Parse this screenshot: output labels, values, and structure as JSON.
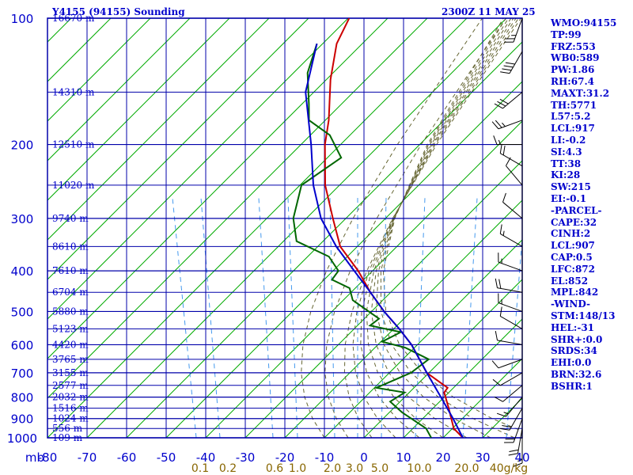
{
  "header": {
    "left": "Y4155 (94155) Sounding",
    "right": "2300Z 11 MAY 25"
  },
  "indices": [
    "WMO:94155",
    "TP:99",
    "FRZ:553",
    "WB0:589",
    "PW:1.86",
    "RH:67.4",
    "MAXT:31.2",
    "TH:5771",
    "L57:5.2",
    "LCL:917",
    "LI:-0.2",
    "SI:4.3",
    "TT:38",
    "KI:28",
    "SW:215",
    "EI:-0.1",
    "-PARCEL-",
    "CAPE:32",
    "CINH:2",
    "LCL:907",
    "CAP:0.5",
    "LFC:872",
    "EL:852",
    "MPL:842",
    "-WIND-",
    "STM:148/13",
    "HEL:-31",
    "SHR+:0.0",
    "SRDS:34",
    "EHI:0.0",
    "BRN:32.6",
    "BSHR:1"
  ],
  "chart_data": {
    "type": "line",
    "chart_kind": "skew-T log-P sounding",
    "x_axis": {
      "unit_label": "mb",
      "tick_labels": [
        "-80",
        "-70",
        "-60",
        "-50",
        "-40",
        "-30",
        "-20",
        "-10",
        "0",
        "10",
        "20",
        "30",
        "40"
      ],
      "range": [
        -80,
        40
      ]
    },
    "y_axis": {
      "scale": "log",
      "range": [
        1000,
        100
      ],
      "tick_labels": [
        "100",
        "200",
        "300",
        "400",
        "500",
        "600",
        "700",
        "800",
        "900",
        "1000"
      ]
    },
    "height_labels": [
      {
        "p": 100,
        "label": "16670 m"
      },
      {
        "p": 150,
        "label": "14310 m"
      },
      {
        "p": 200,
        "label": "12510 m"
      },
      {
        "p": 250,
        "label": "11020 m"
      },
      {
        "p": 300,
        "label": "9740 m"
      },
      {
        "p": 350,
        "label": "8610 m"
      },
      {
        "p": 400,
        "label": "7610 m"
      },
      {
        "p": 450,
        "label": "6704 m"
      },
      {
        "p": 500,
        "label": "5880 m"
      },
      {
        "p": 550,
        "label": "5123 m"
      },
      {
        "p": 600,
        "label": "4420 m"
      },
      {
        "p": 650,
        "label": "3765 m"
      },
      {
        "p": 700,
        "label": "3155 m"
      },
      {
        "p": 750,
        "label": "2577 m"
      },
      {
        "p": 800,
        "label": "2032 m"
      },
      {
        "p": 850,
        "label": "1516 m"
      },
      {
        "p": 900,
        "label": "1024 m"
      },
      {
        "p": 950,
        "label": "556 m"
      },
      {
        "p": 1000,
        "label": "109 m"
      }
    ],
    "mixing_ratio_labels": [
      {
        "w": 0.1,
        "label": "0.1"
      },
      {
        "w": 0.2,
        "label": "0.2"
      },
      {
        "w": 0.6,
        "label": "0.6"
      },
      {
        "w": 1.0,
        "label": "1.0"
      },
      {
        "w": 2.0,
        "label": "2.0"
      },
      {
        "w": 3.0,
        "label": "3.0"
      },
      {
        "w": 5.0,
        "label": "5.0"
      },
      {
        "w": 10.0,
        "label": "10.0"
      },
      {
        "w": 20.0,
        "label": "20.0"
      },
      {
        "w": 40.0,
        "label": "40g/kg"
      }
    ],
    "series": [
      {
        "color": "#cc0000",
        "points": [
          [
            100,
            -80.5
          ],
          [
            115,
            -79
          ],
          [
            140,
            -74
          ],
          [
            175,
            -67
          ],
          [
            200,
            -63.5
          ],
          [
            250,
            -56
          ],
          [
            300,
            -48
          ],
          [
            350,
            -41
          ],
          [
            400,
            -32
          ],
          [
            450,
            -25
          ],
          [
            500,
            -18
          ],
          [
            550,
            -11
          ],
          [
            600,
            -5
          ],
          [
            700,
            4
          ],
          [
            760,
            12
          ],
          [
            780,
            12
          ],
          [
            850,
            16
          ],
          [
            950,
            21
          ],
          [
            1000,
            25
          ]
        ]
      },
      {
        "color": "#006600",
        "points": [
          [
            115,
            -84
          ],
          [
            135,
            -81
          ],
          [
            160,
            -75
          ],
          [
            175,
            -72
          ],
          [
            190,
            -64
          ],
          [
            215,
            -57
          ],
          [
            250,
            -62
          ],
          [
            300,
            -58
          ],
          [
            340,
            -53
          ],
          [
            370,
            -42
          ],
          [
            400,
            -37
          ],
          [
            420,
            -37
          ],
          [
            440,
            -31
          ],
          [
            470,
            -28
          ],
          [
            520,
            -18
          ],
          [
            540,
            -19
          ],
          [
            560,
            -10
          ],
          [
            590,
            -13
          ],
          [
            610,
            -6
          ],
          [
            650,
            2
          ],
          [
            700,
            0
          ],
          [
            760,
            -6
          ],
          [
            780,
            2
          ],
          [
            820,
            0
          ],
          [
            870,
            5
          ],
          [
            950,
            14
          ],
          [
            1000,
            17
          ]
        ]
      },
      {
        "color": "#0000cc",
        "points": [
          [
            115,
            -84
          ],
          [
            150,
            -78
          ],
          [
            200,
            -67
          ],
          [
            250,
            -59
          ],
          [
            300,
            -51
          ],
          [
            350,
            -42
          ],
          [
            400,
            -33
          ],
          [
            450,
            -25
          ],
          [
            500,
            -18
          ],
          [
            550,
            -11
          ],
          [
            600,
            -5
          ],
          [
            700,
            4
          ],
          [
            800,
            12
          ],
          [
            900,
            19
          ],
          [
            1000,
            25
          ]
        ]
      }
    ],
    "wind_barbs": [
      {
        "p": 100,
        "dir": 200,
        "speed": 25
      },
      {
        "p": 120,
        "dir": 210,
        "speed": 40
      },
      {
        "p": 150,
        "dir": 230,
        "speed": 30
      },
      {
        "p": 175,
        "dir": 250,
        "speed": 25
      },
      {
        "p": 200,
        "dir": 270,
        "speed": 15
      },
      {
        "p": 225,
        "dir": 300,
        "speed": 20
      },
      {
        "p": 250,
        "dir": 320,
        "speed": 10
      },
      {
        "p": 300,
        "dir": 310,
        "speed": 10
      },
      {
        "p": 350,
        "dir": 300,
        "speed": 15
      },
      {
        "p": 400,
        "dir": 290,
        "speed": 15
      },
      {
        "p": 450,
        "dir": 280,
        "speed": 20
      },
      {
        "p": 500,
        "dir": 290,
        "speed": 15
      },
      {
        "p": 550,
        "dir": 300,
        "speed": 10
      },
      {
        "p": 600,
        "dir": 280,
        "speed": 10
      },
      {
        "p": 650,
        "dir": 250,
        "speed": 10
      },
      {
        "p": 700,
        "dir": 240,
        "speed": 10
      },
      {
        "p": 750,
        "dir": 230,
        "speed": 10
      },
      {
        "p": 800,
        "dir": 220,
        "speed": 15
      },
      {
        "p": 850,
        "dir": 210,
        "speed": 20
      },
      {
        "p": 900,
        "dir": 200,
        "speed": 20
      },
      {
        "p": 950,
        "dir": 190,
        "speed": 20
      },
      {
        "p": 1000,
        "dir": 180,
        "speed": 15
      }
    ]
  },
  "colors": {
    "grid": "#0000aa",
    "dry_adiabat": "#00aa00",
    "moist_adiabat": "#666633",
    "mixing_ratio": "#4499ee",
    "axis_labels": "#0000cc",
    "mr_labels": "#886600",
    "barb": "#000000"
  }
}
